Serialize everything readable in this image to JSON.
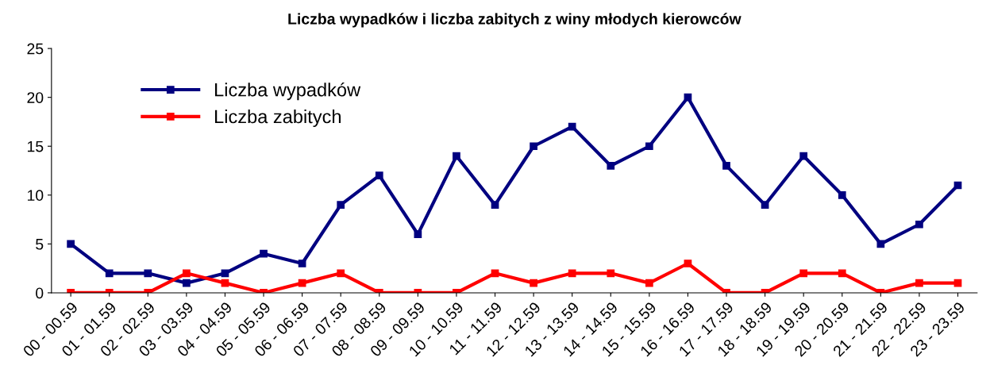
{
  "chart_data": {
    "type": "line",
    "title": "Liczba wypadków i liczba zabitych z winy młodych kierowców",
    "categories": [
      "00 - 00.59",
      "01 - 01.59",
      "02 - 02.59",
      "03 - 03.59",
      "04 - 04.59",
      "05 - 05.59",
      "06 - 06.59",
      "07 - 07.59",
      "08 - 08.59",
      "09 - 09.59",
      "10 - 10.59",
      "11 - 11.59",
      "12 - 12.59",
      "13 - 13.59",
      "14 - 14.59",
      "15 - 15.59",
      "16 - 16.59",
      "17 - 17.59",
      "18 - 18.59",
      "19 - 19.59",
      "20 - 20.59",
      "21 - 21.59",
      "22 - 22.59",
      "23 - 23.59"
    ],
    "series": [
      {
        "name": "Liczba wypadków",
        "color": "#000080",
        "values": [
          5,
          2,
          2,
          1,
          2,
          4,
          3,
          9,
          12,
          6,
          14,
          9,
          15,
          17,
          13,
          15,
          20,
          13,
          9,
          14,
          10,
          5,
          7,
          11
        ]
      },
      {
        "name": "Liczba zabitych",
        "color": "#ff0000",
        "values": [
          0,
          0,
          0,
          2,
          1,
          0,
          1,
          2,
          0,
          0,
          0,
          2,
          1,
          2,
          2,
          1,
          3,
          0,
          0,
          2,
          2,
          0,
          1,
          1
        ]
      }
    ],
    "ylim": [
      0,
      25
    ],
    "yticks": [
      0,
      5,
      10,
      15,
      20,
      25
    ],
    "grid": false,
    "legend": "top left",
    "marker": "square",
    "line_style": "solid"
  }
}
